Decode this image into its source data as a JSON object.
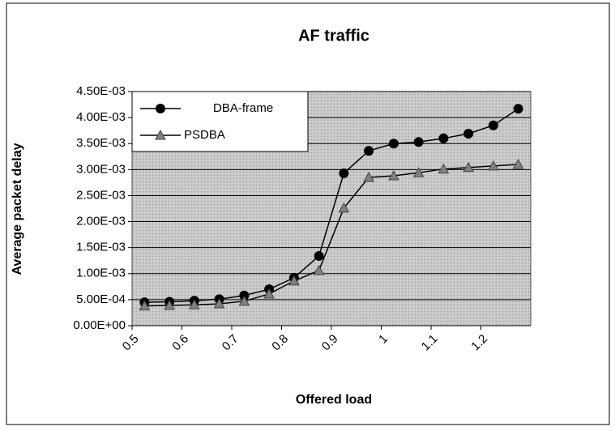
{
  "chart_data": {
    "type": "line",
    "title": "AF traffic",
    "x_label": "Offered load",
    "y_label": "Average packet delay",
    "x": [
      0.525,
      0.575,
      0.625,
      0.675,
      0.725,
      0.775,
      0.825,
      0.875,
      0.925,
      0.975,
      1.025,
      1.075,
      1.125,
      1.175,
      1.225,
      1.275
    ],
    "series": [
      {
        "name": "DBA-frame",
        "color": "#000000",
        "marker": "circle",
        "values": [
          0.00045,
          0.00046,
          0.00048,
          0.00051,
          0.00058,
          0.0007,
          0.00092,
          0.00134,
          0.00293,
          0.00336,
          0.0035,
          0.00353,
          0.0036,
          0.00369,
          0.00385,
          0.00417
        ]
      },
      {
        "name": "PSDBA",
        "color": "#808080",
        "marker": "triangle",
        "values": [
          0.00038,
          0.00039,
          0.0004,
          0.00042,
          0.00047,
          0.00061,
          0.00086,
          0.00106,
          0.00226,
          0.00285,
          0.00288,
          0.00294,
          0.00301,
          0.00304,
          0.00307,
          0.0031
        ]
      }
    ],
    "xlim": [
      0.5,
      1.3
    ],
    "xticks": [
      0.5,
      0.6,
      0.7,
      0.8,
      0.9,
      1,
      1.1,
      1.2
    ],
    "ylim": [
      0,
      0.0045
    ],
    "yticks": [
      {
        "value": 0,
        "label": "0.00E+00"
      },
      {
        "value": 0.0005,
        "label": "5.00E-04"
      },
      {
        "value": 0.001,
        "label": "1.00E-03"
      },
      {
        "value": 0.0015,
        "label": "1.50E-03"
      },
      {
        "value": 0.002,
        "label": "2.00E-03"
      },
      {
        "value": 0.0025,
        "label": "2.50E-03"
      },
      {
        "value": 0.003,
        "label": "3.00E-03"
      },
      {
        "value": 0.0035,
        "label": "3.50E-03"
      },
      {
        "value": 0.004,
        "label": "4.00E-03"
      },
      {
        "value": 0.0045,
        "label": "4.50E-03"
      }
    ],
    "grid": true,
    "legend": "top-left"
  }
}
